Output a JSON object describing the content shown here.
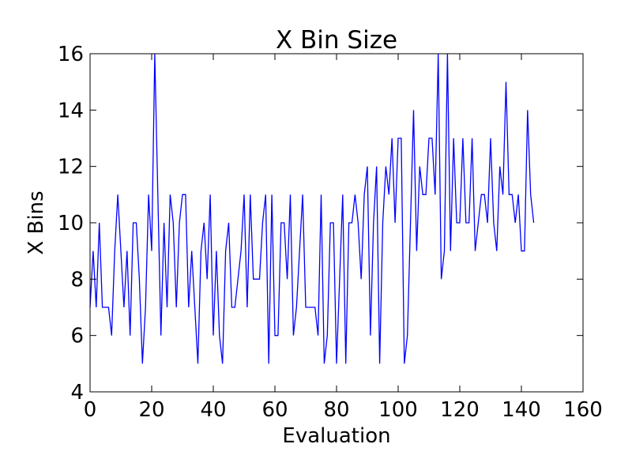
{
  "chart_data": {
    "type": "line",
    "title": "X Bin Size",
    "xlabel": "Evaluation",
    "ylabel": "X Bins",
    "xlim": [
      0,
      160
    ],
    "ylim": [
      4,
      16
    ],
    "xticks": [
      "0",
      "20",
      "40",
      "60",
      "80",
      "100",
      "120",
      "140",
      "160"
    ],
    "yticks": [
      "4",
      "6",
      "8",
      "10",
      "12",
      "14",
      "16"
    ],
    "grid": false,
    "line_color": "#0000ff",
    "series": [
      {
        "x": [
          0,
          1,
          2,
          3,
          4,
          5,
          6,
          7,
          8,
          9,
          10,
          11,
          12,
          13,
          14,
          15,
          16,
          17,
          18,
          19,
          20,
          21,
          22,
          23,
          24,
          25,
          26,
          27,
          28,
          29,
          30,
          31,
          32,
          33,
          34,
          35,
          36,
          37,
          38,
          39,
          40,
          41,
          42,
          43,
          44,
          45,
          46,
          47,
          48,
          49,
          50,
          51,
          52,
          53,
          54,
          55,
          56,
          57,
          58,
          59,
          60,
          61,
          62,
          63,
          64,
          65,
          66,
          67,
          68,
          69,
          70,
          71,
          72,
          73,
          74,
          75,
          76,
          77,
          78,
          79,
          80,
          81,
          82,
          83,
          84,
          85,
          86,
          87,
          88,
          89,
          90,
          91,
          92,
          93,
          94,
          95,
          96,
          97,
          98,
          99,
          100,
          101,
          102,
          103,
          104,
          105,
          106,
          107,
          108,
          109,
          110,
          111,
          112,
          113,
          114,
          115,
          116,
          117,
          118,
          119,
          120,
          121,
          122,
          123,
          124,
          125,
          126,
          127,
          128,
          129,
          130,
          131,
          132,
          133,
          134,
          135,
          136,
          137,
          138,
          139,
          140,
          141,
          142,
          143,
          144
        ],
        "values": [
          7,
          9,
          7,
          10,
          7,
          7,
          7,
          6,
          9,
          11,
          9,
          7,
          9,
          6,
          10,
          10,
          8,
          5,
          7,
          11,
          9,
          16,
          11,
          6,
          10,
          7,
          11,
          10,
          7,
          10,
          11,
          11,
          7,
          9,
          7,
          5,
          9,
          10,
          8,
          11,
          6,
          9,
          6,
          5,
          9,
          10,
          7,
          7,
          8,
          9,
          11,
          7,
          11,
          8,
          8,
          8,
          10,
          11,
          5,
          11,
          6,
          6,
          10,
          10,
          8,
          11,
          6,
          7,
          9,
          11,
          7,
          7,
          7,
          7,
          6,
          11,
          5,
          6,
          10,
          10,
          5,
          8,
          11,
          5,
          10,
          10,
          11,
          10,
          8,
          11,
          12,
          6,
          10,
          12,
          5,
          10,
          12,
          11,
          13,
          10,
          13,
          13,
          5,
          6,
          10,
          14,
          9,
          12,
          11,
          11,
          13,
          13,
          11,
          16,
          8,
          9,
          16,
          9,
          13,
          10,
          10,
          13,
          10,
          10,
          13,
          9,
          10,
          11,
          11,
          10,
          13,
          10,
          9,
          12,
          11,
          15,
          11,
          11,
          10,
          11,
          9,
          9,
          14,
          11,
          10
        ]
      }
    ]
  }
}
